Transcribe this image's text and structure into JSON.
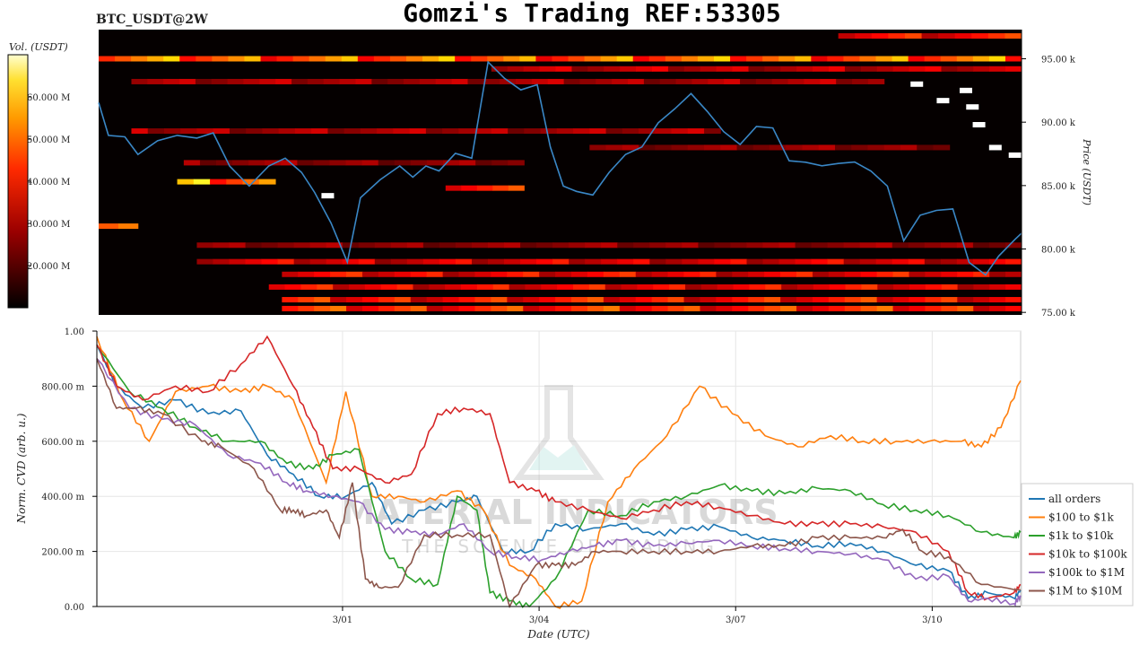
{
  "header": {
    "symbol": "BTC_USDT@2W",
    "title": "Gomzi's Trading REF:53305"
  },
  "watermark": {
    "line1": "MATERIAL INDICATORS",
    "line2": "THE SCIENCE OF TRADING"
  },
  "colors": {
    "heatmap_bg": "#050000",
    "price_line": "#3a87c6",
    "grid": "#e6e6e6"
  },
  "chart_data": [
    {
      "type": "heatmap",
      "title": "",
      "colorbar_label": "Vol. (USDT)",
      "colorbar_ticks": [
        "60.000 M",
        "50.000 M",
        "40.000 M",
        "30.000 M",
        "20.000 M"
      ],
      "colorbar_values": [
        60,
        50,
        40,
        30,
        20
      ],
      "colorbar_range": [
        10,
        70
      ],
      "colormap": "hot",
      "ylabel": "Price (USDT)",
      "y_ticks": [
        "95.00 k",
        "90.00 k",
        "85.00 k",
        "80.00 k",
        "75.00 k"
      ],
      "y_tick_values": [
        95000,
        90000,
        85000,
        80000,
        75000
      ],
      "ylim": [
        74800,
        97300
      ],
      "xlim": [
        0,
        14.1
      ],
      "bands": [
        {
          "price": 95000,
          "x": [
            0,
            14.1
          ],
          "level": 0.75
        },
        {
          "price": 96800,
          "x": [
            11.3,
            14.1
          ],
          "level": 0.55
        },
        {
          "price": 94200,
          "x": [
            6.0,
            14.1
          ],
          "level": 0.4
        },
        {
          "price": 93200,
          "x": [
            0.5,
            12.0
          ],
          "level": 0.35
        },
        {
          "price": 89300,
          "x": [
            0.5,
            9.5
          ],
          "level": 0.35
        },
        {
          "price": 88000,
          "x": [
            7.5,
            13.0
          ],
          "level": 0.3
        },
        {
          "price": 86800,
          "x": [
            1.3,
            6.5
          ],
          "level": 0.3
        },
        {
          "price": 85300,
          "x": [
            1.2,
            2.7
          ],
          "level": 0.85
        },
        {
          "price": 84800,
          "x": [
            5.3,
            6.5
          ],
          "level": 0.55
        },
        {
          "price": 81800,
          "x": [
            0,
            0.6
          ],
          "level": 0.6
        },
        {
          "price": 80300,
          "x": [
            1.5,
            14.1
          ],
          "level": 0.3
        },
        {
          "price": 79000,
          "x": [
            1.5,
            14.1
          ],
          "level": 0.45
        },
        {
          "price": 78000,
          "x": [
            2.8,
            14.1
          ],
          "level": 0.5
        },
        {
          "price": 77000,
          "x": [
            2.6,
            14.1
          ],
          "level": 0.5
        },
        {
          "price": 76000,
          "x": [
            2.8,
            14.1
          ],
          "level": 0.55
        },
        {
          "price": 75300,
          "x": [
            2.8,
            14.1
          ],
          "level": 0.6
        }
      ],
      "price_series": {
        "x": [
          0,
          0.15,
          0.4,
          0.6,
          0.9,
          1.2,
          1.5,
          1.75,
          2.0,
          2.3,
          2.6,
          2.85,
          3.1,
          3.3,
          3.55,
          3.8,
          4.0,
          4.3,
          4.6,
          4.8,
          5.0,
          5.2,
          5.45,
          5.7,
          5.95,
          6.2,
          6.45,
          6.7,
          6.9,
          7.1,
          7.3,
          7.55,
          7.8,
          8.05,
          8.3,
          8.55,
          8.8,
          9.05,
          9.3,
          9.55,
          9.8,
          10.05,
          10.3,
          10.55,
          10.8,
          11.05,
          11.3,
          11.55,
          11.8,
          12.05,
          12.3,
          12.55,
          12.8,
          13.05,
          13.3,
          13.55,
          13.75,
          14.0,
          14.1
        ],
        "y": [
          91500,
          89000,
          88800,
          87500,
          88500,
          89000,
          88700,
          89200,
          86500,
          85000,
          86500,
          87200,
          86000,
          84500,
          82000,
          79000,
          84000,
          85500,
          86500,
          85700,
          86500,
          86200,
          87500,
          87200,
          94700,
          93500,
          92500,
          93000,
          88000,
          85000,
          84500,
          84300,
          86000,
          87500,
          88000,
          90000,
          91000,
          92300,
          90800,
          89300,
          88200,
          89700,
          89500,
          87000,
          86800,
          86600,
          86700,
          86900,
          86100,
          85000,
          80600,
          82700,
          83000,
          83200,
          78900,
          78000,
          79400,
          80800,
          81200
        ]
      },
      "markers": [
        {
          "x": 3.5,
          "price": 84200
        },
        {
          "x": 12.5,
          "price": 93000
        },
        {
          "x": 12.9,
          "price": 91700
        },
        {
          "x": 13.25,
          "price": 92500
        },
        {
          "x": 13.35,
          "price": 91200
        },
        {
          "x": 13.45,
          "price": 89800
        },
        {
          "x": 13.7,
          "price": 88000
        },
        {
          "x": 14.0,
          "price": 87400
        }
      ]
    },
    {
      "type": "line",
      "title": "",
      "xlabel": "Date (UTC)",
      "ylabel": "Norm. CVD (arb. u.)",
      "x_ticks": [
        "3/01",
        "3/04",
        "3/07",
        "3/10"
      ],
      "x_tick_values": [
        3.75,
        6.75,
        9.75,
        12.75
      ],
      "xlim": [
        0,
        14.1
      ],
      "y_ticks": [
        "1.00",
        "800.00 m",
        "600.00 m",
        "400.00 m",
        "200.00 m",
        "0.00"
      ],
      "y_tick_values": [
        1.0,
        0.8,
        0.6,
        0.4,
        0.2,
        0.0
      ],
      "ylim": [
        0,
        1.0
      ],
      "grid": true,
      "legend_position": "right",
      "series": [
        {
          "name": "all orders",
          "color": "#1f77b4",
          "x": [
            0,
            0.3,
            0.7,
            1.2,
            1.7,
            2.2,
            2.6,
            3.0,
            3.4,
            3.8,
            4.2,
            4.5,
            5.0,
            5.5,
            5.8,
            6.2,
            6.6,
            7.0,
            7.5,
            8.0,
            8.5,
            9.0,
            9.5,
            10.0,
            10.5,
            11.0,
            11.5,
            12.0,
            12.5,
            13.0,
            13.3,
            13.6,
            14.0,
            14.1
          ],
          "y": [
            0.95,
            0.8,
            0.72,
            0.75,
            0.7,
            0.71,
            0.55,
            0.48,
            0.4,
            0.4,
            0.45,
            0.3,
            0.35,
            0.38,
            0.4,
            0.2,
            0.2,
            0.3,
            0.28,
            0.3,
            0.26,
            0.28,
            0.29,
            0.25,
            0.24,
            0.22,
            0.23,
            0.2,
            0.15,
            0.13,
            0.03,
            0.05,
            0.03,
            0.06
          ]
        },
        {
          "name": "$100 to $1k",
          "color": "#ff7f0e",
          "x": [
            0,
            0.4,
            0.8,
            1.2,
            1.7,
            2.2,
            2.6,
            3.0,
            3.5,
            3.8,
            4.2,
            4.6,
            5.0,
            5.5,
            5.9,
            6.3,
            6.7,
            7.0,
            7.4,
            7.8,
            8.2,
            8.7,
            9.2,
            9.7,
            10.2,
            10.7,
            11.2,
            11.7,
            12.2,
            12.7,
            13.2,
            13.5,
            13.8,
            14.1
          ],
          "y": [
            0.98,
            0.75,
            0.6,
            0.78,
            0.8,
            0.78,
            0.8,
            0.75,
            0.45,
            0.78,
            0.4,
            0.4,
            0.38,
            0.42,
            0.35,
            0.15,
            0.1,
            0.0,
            0.02,
            0.38,
            0.5,
            0.62,
            0.8,
            0.7,
            0.62,
            0.58,
            0.62,
            0.6,
            0.6,
            0.6,
            0.6,
            0.58,
            0.65,
            0.82
          ]
        },
        {
          "name": "$1k to $10k",
          "color": "#2ca02c",
          "x": [
            0,
            0.5,
            1.0,
            1.5,
            2.0,
            2.5,
            2.9,
            3.3,
            3.6,
            4.0,
            4.4,
            4.8,
            5.2,
            5.5,
            5.8,
            6.0,
            6.3,
            6.6,
            7.0,
            7.5,
            8.0,
            8.5,
            9.0,
            9.5,
            10.0,
            10.5,
            11.0,
            11.5,
            12.0,
            12.5,
            13.0,
            13.5,
            14.0,
            14.1
          ],
          "y": [
            0.95,
            0.78,
            0.72,
            0.65,
            0.6,
            0.6,
            0.52,
            0.5,
            0.55,
            0.57,
            0.2,
            0.1,
            0.08,
            0.4,
            0.35,
            0.05,
            0.02,
            0.0,
            0.1,
            0.35,
            0.33,
            0.38,
            0.4,
            0.44,
            0.42,
            0.41,
            0.43,
            0.42,
            0.37,
            0.35,
            0.33,
            0.27,
            0.25,
            0.27
          ]
        },
        {
          "name": "$10k to $100k",
          "color": "#d62728",
          "x": [
            0,
            0.3,
            0.7,
            1.2,
            1.7,
            2.2,
            2.6,
            3.0,
            3.3,
            3.6,
            4.0,
            4.4,
            4.8,
            5.2,
            5.6,
            6.0,
            6.3,
            6.7,
            7.0,
            7.5,
            8.0,
            8.5,
            9.0,
            9.5,
            10.0,
            10.5,
            11.0,
            11.5,
            12.0,
            12.5,
            13.0,
            13.3,
            13.6,
            14.0,
            14.1
          ],
          "y": [
            0.95,
            0.8,
            0.75,
            0.8,
            0.78,
            0.88,
            0.98,
            0.8,
            0.65,
            0.5,
            0.5,
            0.45,
            0.48,
            0.7,
            0.72,
            0.7,
            0.45,
            0.42,
            0.38,
            0.35,
            0.32,
            0.35,
            0.38,
            0.36,
            0.33,
            0.3,
            0.3,
            0.3,
            0.29,
            0.27,
            0.2,
            0.05,
            0.03,
            0.05,
            0.08
          ]
        },
        {
          "name": "$100k to $1M",
          "color": "#9467bd",
          "x": [
            0,
            0.5,
            1.0,
            1.5,
            2.0,
            2.5,
            2.9,
            3.2,
            3.6,
            4.0,
            4.4,
            4.8,
            5.2,
            5.6,
            6.0,
            6.4,
            6.8,
            7.2,
            7.6,
            8.0,
            8.5,
            9.0,
            9.5,
            10.0,
            10.5,
            11.0,
            11.5,
            12.0,
            12.5,
            13.0,
            13.3,
            13.6,
            14.0,
            14.1
          ],
          "y": [
            0.9,
            0.72,
            0.68,
            0.66,
            0.55,
            0.52,
            0.45,
            0.42,
            0.4,
            0.38,
            0.28,
            0.27,
            0.26,
            0.3,
            0.2,
            0.18,
            0.17,
            0.2,
            0.22,
            0.24,
            0.22,
            0.23,
            0.24,
            0.22,
            0.21,
            0.2,
            0.19,
            0.17,
            0.1,
            0.11,
            0.02,
            0.03,
            0.01,
            0.04
          ]
        },
        {
          "name": "$1M to $10M",
          "color": "#8c564b",
          "x": [
            0,
            0.3,
            0.6,
            1.0,
            1.6,
            1.9,
            2.4,
            2.8,
            3.0,
            3.2,
            3.5,
            3.7,
            3.9,
            4.1,
            4.3,
            4.6,
            5.0,
            5.5,
            6.0,
            6.3,
            6.7,
            7.0,
            7.3,
            7.6,
            8.0,
            8.5,
            9.0,
            9.5,
            10.0,
            10.5,
            11.0,
            11.5,
            12.0,
            12.3,
            12.6,
            13.0,
            13.5,
            14.1
          ],
          "y": [
            0.9,
            0.72,
            0.72,
            0.7,
            0.6,
            0.58,
            0.5,
            0.35,
            0.35,
            0.33,
            0.35,
            0.25,
            0.45,
            0.1,
            0.07,
            0.07,
            0.26,
            0.26,
            0.26,
            0.0,
            0.15,
            0.15,
            0.15,
            0.2,
            0.2,
            0.2,
            0.2,
            0.2,
            0.22,
            0.22,
            0.25,
            0.25,
            0.25,
            0.28,
            0.2,
            0.18,
            0.08,
            0.06
          ]
        }
      ]
    }
  ]
}
